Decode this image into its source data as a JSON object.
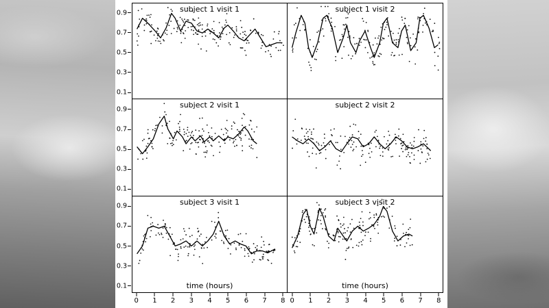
{
  "figure": {
    "title": "",
    "xlabel": "time (hours)",
    "note": "3x2 lattice of scatter plots with smoothed trend lines, one panel per subject/visit"
  },
  "chart_data": {
    "type": "scatter",
    "subtype": "trellis-scatter-with-smooth-line",
    "xlabel": "time (hours)",
    "ylabel": "",
    "layout": {
      "rows": 3,
      "cols": 2,
      "xlim": [
        -0.25,
        8.25
      ],
      "ylim": [
        0.03,
        1.0
      ],
      "x_ticks": [
        0,
        1,
        2,
        3,
        4,
        5,
        6,
        7,
        8
      ],
      "y_ticks": [
        0.1,
        0.3,
        0.5,
        0.7,
        0.9
      ],
      "grid": false,
      "legend": "none"
    },
    "point_color": "#111111",
    "line_color": "#000000",
    "panels": [
      {
        "title": "subject 1 visit 1",
        "line": {
          "x": [
            0,
            0.3,
            0.6,
            1.0,
            1.3,
            1.6,
            1.9,
            2.1,
            2.4,
            2.7,
            3.0,
            3.3,
            3.6,
            3.9,
            4.2,
            4.5,
            4.8,
            5.0,
            5.3,
            5.6,
            5.9,
            6.2,
            6.5,
            6.8,
            7.1,
            7.4,
            7.7,
            8.0
          ],
          "y": [
            0.74,
            0.85,
            0.8,
            0.72,
            0.65,
            0.75,
            0.9,
            0.85,
            0.72,
            0.82,
            0.8,
            0.72,
            0.7,
            0.74,
            0.7,
            0.65,
            0.75,
            0.78,
            0.72,
            0.65,
            0.62,
            0.68,
            0.74,
            0.65,
            0.56,
            0.58,
            0.6,
            0.6
          ]
        },
        "scatter": {
          "n": 190,
          "sd": 0.075,
          "seed": 11,
          "xmin": 0.0,
          "xmax": 8.1
        }
      },
      {
        "title": "subject 1 visit 2",
        "line": {
          "x": [
            0,
            0.2,
            0.5,
            0.7,
            0.9,
            1.1,
            1.4,
            1.7,
            1.9,
            2.2,
            2.5,
            2.8,
            3.0,
            3.2,
            3.5,
            3.7,
            4.0,
            4.3,
            4.5,
            4.8,
            5.0,
            5.2,
            5.5,
            5.8,
            6.0,
            6.2,
            6.5,
            6.8,
            7.0,
            7.2,
            7.5,
            7.8,
            8.0
          ],
          "y": [
            0.55,
            0.7,
            0.88,
            0.8,
            0.55,
            0.45,
            0.6,
            0.85,
            0.88,
            0.75,
            0.5,
            0.65,
            0.78,
            0.6,
            0.5,
            0.62,
            0.72,
            0.55,
            0.45,
            0.6,
            0.8,
            0.85,
            0.6,
            0.55,
            0.72,
            0.78,
            0.52,
            0.6,
            0.85,
            0.88,
            0.75,
            0.55,
            0.58
          ]
        },
        "scatter": {
          "n": 200,
          "sd": 0.1,
          "seed": 22,
          "xmin": 0.0,
          "xmax": 8.1
        }
      },
      {
        "title": "subject 2 visit 1",
        "line": {
          "x": [
            0,
            0.3,
            0.6,
            0.9,
            1.2,
            1.5,
            1.7,
            2.0,
            2.2,
            2.5,
            2.7,
            3.0,
            3.2,
            3.5,
            3.7,
            4.0,
            4.2,
            4.5,
            4.8,
            5.0,
            5.3,
            5.6,
            5.9,
            6.1,
            6.4,
            6.6
          ],
          "y": [
            0.52,
            0.45,
            0.52,
            0.6,
            0.75,
            0.83,
            0.7,
            0.6,
            0.68,
            0.62,
            0.55,
            0.62,
            0.58,
            0.63,
            0.57,
            0.62,
            0.58,
            0.63,
            0.58,
            0.62,
            0.6,
            0.65,
            0.72,
            0.68,
            0.58,
            0.55
          ]
        },
        "scatter": {
          "n": 175,
          "sd": 0.08,
          "seed": 33,
          "xmin": 0.0,
          "xmax": 6.6
        }
      },
      {
        "title": "subject 2 visit 2",
        "line": {
          "x": [
            0,
            0.3,
            0.6,
            0.9,
            1.2,
            1.5,
            1.8,
            2.1,
            2.4,
            2.7,
            3.0,
            3.3,
            3.6,
            3.9,
            4.2,
            4.5,
            4.8,
            5.1,
            5.4,
            5.7,
            6.0,
            6.3,
            6.6,
            6.9,
            7.2,
            7.6
          ],
          "y": [
            0.62,
            0.58,
            0.55,
            0.6,
            0.55,
            0.48,
            0.52,
            0.58,
            0.5,
            0.47,
            0.55,
            0.62,
            0.6,
            0.52,
            0.55,
            0.62,
            0.55,
            0.5,
            0.55,
            0.62,
            0.58,
            0.52,
            0.5,
            0.52,
            0.55,
            0.48
          ]
        },
        "scatter": {
          "n": 180,
          "sd": 0.085,
          "seed": 44,
          "xmin": 0.0,
          "xmax": 7.6
        }
      },
      {
        "title": "subject 3 visit 1",
        "line": {
          "x": [
            0,
            0.3,
            0.6,
            0.9,
            1.2,
            1.5,
            1.8,
            2.1,
            2.4,
            2.7,
            3.0,
            3.3,
            3.6,
            3.9,
            4.2,
            4.5,
            4.8,
            5.1,
            5.4,
            5.7,
            6.0,
            6.3,
            6.6,
            6.9,
            7.2,
            7.6
          ],
          "y": [
            0.42,
            0.5,
            0.68,
            0.7,
            0.68,
            0.7,
            0.6,
            0.5,
            0.52,
            0.55,
            0.5,
            0.55,
            0.5,
            0.55,
            0.62,
            0.75,
            0.6,
            0.52,
            0.55,
            0.52,
            0.5,
            0.42,
            0.45,
            0.45,
            0.43,
            0.47
          ]
        },
        "scatter": {
          "n": 175,
          "sd": 0.07,
          "seed": 55,
          "xmin": 0.0,
          "xmax": 7.6
        }
      },
      {
        "title": "subject 3 visit 2",
        "line": {
          "x": [
            0,
            0.3,
            0.6,
            0.8,
            1.0,
            1.2,
            1.5,
            1.7,
            2.0,
            2.3,
            2.5,
            2.8,
            3.0,
            3.3,
            3.6,
            3.9,
            4.2,
            4.5,
            4.8,
            5.0,
            5.2,
            5.5,
            5.8,
            6.1,
            6.4,
            6.6
          ],
          "y": [
            0.48,
            0.6,
            0.82,
            0.87,
            0.7,
            0.62,
            0.88,
            0.8,
            0.6,
            0.55,
            0.68,
            0.6,
            0.55,
            0.65,
            0.7,
            0.65,
            0.68,
            0.72,
            0.8,
            0.9,
            0.85,
            0.65,
            0.55,
            0.6,
            0.62,
            0.6
          ]
        },
        "scatter": {
          "n": 175,
          "sd": 0.08,
          "seed": 66,
          "xmin": 0.0,
          "xmax": 6.6
        }
      }
    ]
  }
}
